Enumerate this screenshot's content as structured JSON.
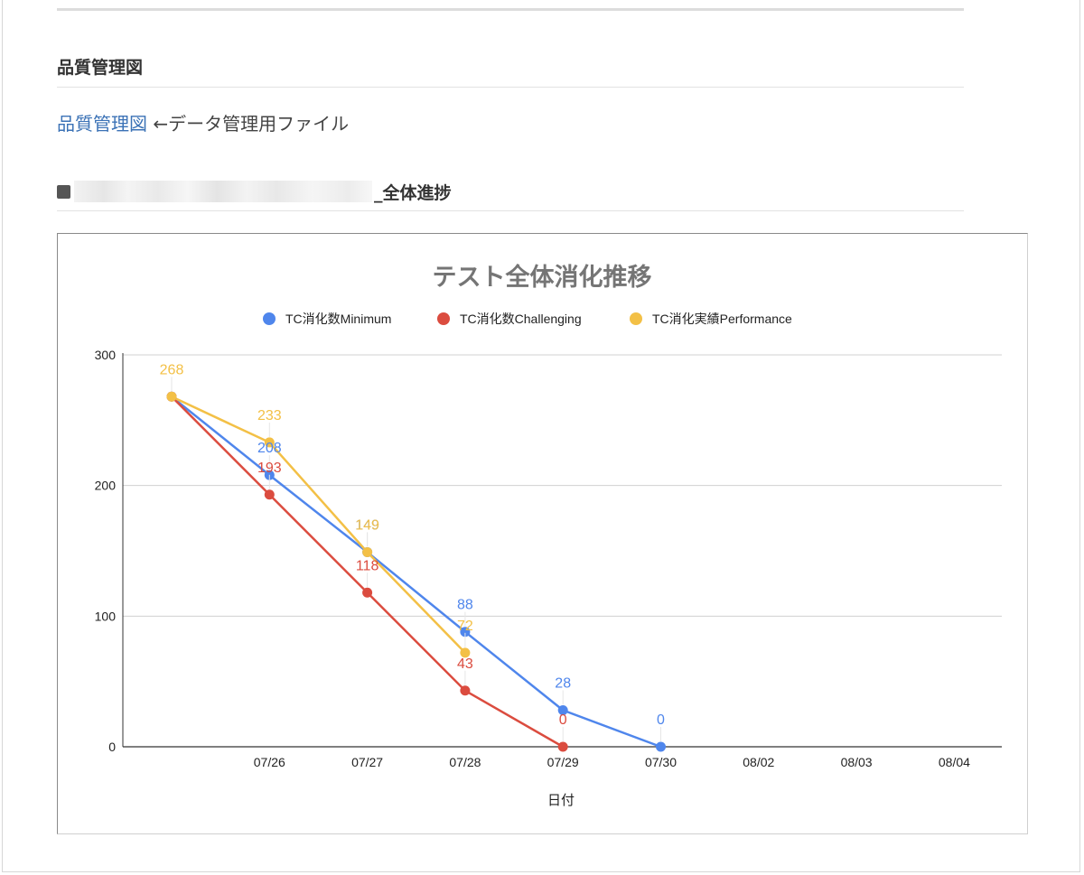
{
  "page": {
    "heading": "品質管理図",
    "link_text": "品質管理図",
    "link_suffix": " ←データ管理用ファイル",
    "section_title_suffix": "_全体進捗"
  },
  "chart_data": {
    "type": "line",
    "title": "テスト全体消化推移",
    "xlabel": "日付",
    "ylabel": "",
    "ylim": [
      0,
      300
    ],
    "yticks": [
      0,
      100,
      200,
      300
    ],
    "categories": [
      "",
      "07/26",
      "07/27",
      "07/28",
      "07/29",
      "07/30",
      "08/02",
      "08/03",
      "08/04"
    ],
    "legend_position": "top",
    "grid": true,
    "series": [
      {
        "name": "TC消化数Minimum",
        "color": "#4f86ec",
        "values": [
          268,
          208,
          149,
          88,
          28,
          0,
          null,
          null,
          null
        ]
      },
      {
        "name": "TC消化数Challenging",
        "color": "#db4c3f",
        "values": [
          268,
          193,
          118,
          43,
          0,
          null,
          null,
          null,
          null
        ]
      },
      {
        "name": "TC消化実績Performance",
        "color": "#f3c046",
        "values": [
          268,
          233,
          149,
          72,
          null,
          null,
          null,
          null,
          null
        ]
      }
    ]
  }
}
